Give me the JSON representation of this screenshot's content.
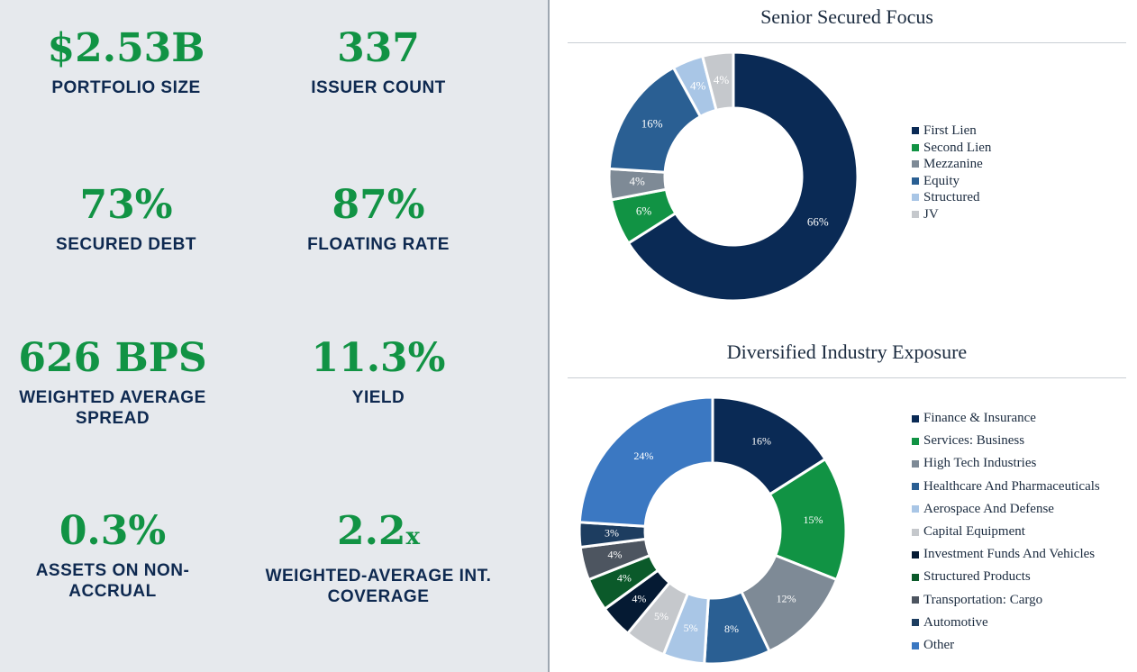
{
  "stats": [
    {
      "value": "$2.53B",
      "suffix": "",
      "label": "PORTFOLIO SIZE"
    },
    {
      "value": "337",
      "suffix": "",
      "label": "ISSUER COUNT"
    },
    {
      "value": "73%",
      "suffix": "",
      "label": "SECURED DEBT"
    },
    {
      "value": "87%",
      "suffix": "",
      "label": "FLOATING RATE"
    },
    {
      "value": "626 BPS",
      "suffix": "",
      "label": "WEIGHTED AVERAGE SPREAD"
    },
    {
      "value": "11.3%",
      "suffix": "",
      "label": "YIELD"
    },
    {
      "value": "0.3%",
      "suffix": "",
      "label": "ASSETS ON NON-ACCRUAL"
    },
    {
      "value": "2.2",
      "suffix": "x",
      "label": "WEIGHTED-AVERAGE INT. COVERAGE"
    }
  ],
  "chart_data": [
    {
      "type": "pie",
      "donut": true,
      "title": "Senior Secured Focus",
      "legend_position": "right",
      "categories": [
        "First Lien",
        "Second Lien",
        "Mezzanine",
        "Equity",
        "Structured",
        "JV"
      ],
      "values": [
        66,
        6,
        4,
        16,
        4,
        4
      ],
      "data_labels": [
        "66%",
        "6%",
        "4%",
        "16%",
        "4%",
        "4%"
      ],
      "colors": [
        "#0a2a55",
        "#119344",
        "#7e8a96",
        "#2a5f93",
        "#a9c6e6",
        "#c5c8cc"
      ],
      "label_colors": [
        "#ffffff",
        "#ffffff",
        "#ffffff",
        "#ffffff",
        "#ffffff",
        "#ffffff"
      ]
    },
    {
      "type": "pie",
      "donut": true,
      "title": "Diversified Industry Exposure",
      "legend_position": "right",
      "categories": [
        "Finance & Insurance",
        "Services: Business",
        "High Tech Industries",
        "Healthcare And Pharmaceuticals",
        "Aerospace And Defense",
        "Capital Equipment",
        "Investment Funds And Vehicles",
        "Structured Products",
        "Transportation: Cargo",
        "Automotive",
        "Other"
      ],
      "values": [
        16,
        15,
        12,
        8,
        5,
        5,
        4,
        4,
        4,
        3,
        24
      ],
      "data_labels": [
        "16%",
        "15%",
        "12%",
        "8%",
        "5%",
        "5%",
        "4%",
        "4%",
        "4%",
        "3%",
        "24%"
      ],
      "colors": [
        "#0a2a55",
        "#119344",
        "#7e8a96",
        "#2a5f93",
        "#a9c6e6",
        "#c5c8cc",
        "#051a33",
        "#0b5a2a",
        "#4d5560",
        "#1d3d60",
        "#3b78c2"
      ],
      "label_colors": [
        "#ffffff",
        "#ffffff",
        "#ffffff",
        "#ffffff",
        "#ffffff",
        "#ffffff",
        "#ffffff",
        "#ffffff",
        "#ffffff",
        "#ffffff",
        "#ffffff"
      ]
    }
  ]
}
